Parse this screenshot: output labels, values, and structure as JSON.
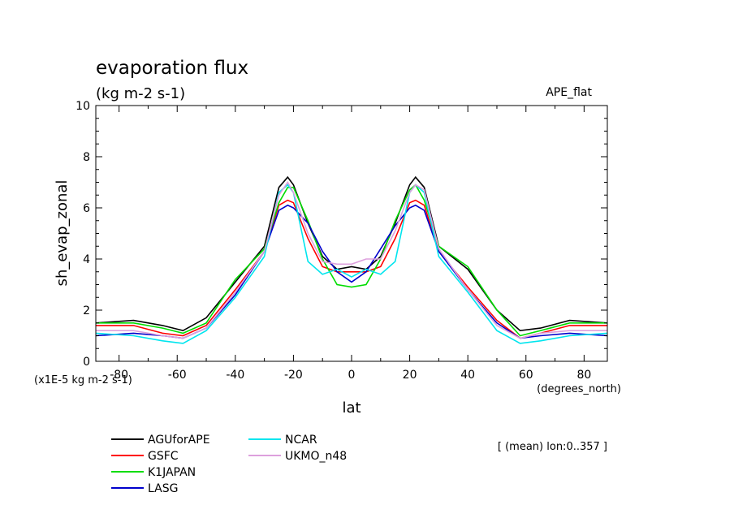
{
  "chart_data": {
    "type": "line",
    "title": "evaporation flux",
    "subtitle": "(kg m-2 s-1)",
    "experiment": "APE_flat",
    "xlabel": "lat",
    "x_units": "(degrees_north)",
    "ylabel": "sh_evap_zonal",
    "y_scale_note": "(x1E-5 kg m-2 s-1)",
    "mean_note": "[ (mean) lon:0..357 ]",
    "xlim": [
      -88,
      88
    ],
    "ylim": [
      0,
      10
    ],
    "x_ticks": [
      -80,
      -60,
      -40,
      -20,
      0,
      20,
      40,
      60,
      80
    ],
    "x_tick_labels": [
      "-80",
      "-60",
      "-40",
      "-20",
      "0",
      "20",
      "40",
      "60",
      "80"
    ],
    "y_ticks": [
      0,
      2,
      4,
      6,
      8,
      10
    ],
    "y_tick_labels": [
      "0",
      "2",
      "4",
      "6",
      "8",
      "10"
    ],
    "grid": false,
    "legend_position": "bottom-left",
    "series": [
      {
        "name": "AGUforAPE",
        "color": "#000000",
        "x": [
          -88,
          -75,
          -65,
          -58,
          -50,
          -40,
          -30,
          -25,
          -22,
          -20,
          -15,
          -10,
          -5,
          0,
          5,
          10,
          15,
          20,
          22,
          25,
          30,
          40,
          50,
          58,
          65,
          75,
          88
        ],
        "y": [
          1.5,
          1.6,
          1.4,
          1.2,
          1.7,
          3.1,
          4.5,
          6.8,
          7.2,
          6.9,
          5.4,
          4.1,
          3.6,
          3.7,
          3.6,
          4.1,
          5.4,
          6.9,
          7.2,
          6.8,
          4.5,
          3.6,
          2.0,
          1.2,
          1.3,
          1.6,
          1.5
        ]
      },
      {
        "name": "GSFC",
        "color": "#ff0000",
        "x": [
          -88,
          -75,
          -65,
          -58,
          -50,
          -40,
          -30,
          -25,
          -22,
          -20,
          -15,
          -10,
          -5,
          0,
          5,
          10,
          15,
          20,
          22,
          25,
          30,
          40,
          50,
          58,
          65,
          75,
          88
        ],
        "y": [
          1.4,
          1.4,
          1.1,
          1.0,
          1.4,
          2.8,
          4.3,
          6.1,
          6.3,
          6.2,
          4.8,
          3.7,
          3.5,
          3.5,
          3.5,
          3.7,
          4.8,
          6.2,
          6.3,
          6.1,
          4.3,
          2.9,
          1.6,
          0.9,
          1.1,
          1.4,
          1.4
        ]
      },
      {
        "name": "K1JAPAN",
        "color": "#00dd00",
        "x": [
          -88,
          -75,
          -65,
          -58,
          -50,
          -40,
          -30,
          -25,
          -22,
          -20,
          -15,
          -10,
          -5,
          0,
          5,
          10,
          15,
          20,
          22,
          25,
          30,
          40,
          50,
          58,
          65,
          75,
          88
        ],
        "y": [
          1.5,
          1.5,
          1.3,
          1.1,
          1.5,
          3.2,
          4.4,
          6.2,
          6.8,
          6.8,
          5.5,
          4.0,
          3.0,
          2.9,
          3.0,
          4.0,
          5.5,
          6.7,
          6.9,
          6.3,
          4.5,
          3.7,
          2.0,
          1.0,
          1.2,
          1.5,
          1.5
        ]
      },
      {
        "name": "LASG",
        "color": "#0000cc",
        "x": [
          -88,
          -75,
          -65,
          -58,
          -50,
          -40,
          -30,
          -25,
          -22,
          -20,
          -15,
          -10,
          -5,
          0,
          5,
          10,
          15,
          20,
          22,
          25,
          30,
          40,
          50,
          58,
          65,
          75,
          88
        ],
        "y": [
          1.0,
          1.1,
          1.0,
          0.9,
          1.3,
          2.6,
          4.3,
          5.9,
          6.1,
          6.0,
          5.4,
          4.3,
          3.5,
          3.1,
          3.5,
          4.4,
          5.3,
          6.0,
          6.1,
          5.9,
          4.3,
          2.8,
          1.5,
          0.9,
          1.0,
          1.1,
          1.0
        ]
      },
      {
        "name": "NCAR",
        "color": "#00e5ee",
        "x": [
          -88,
          -75,
          -65,
          -58,
          -50,
          -40,
          -30,
          -25,
          -22,
          -20,
          -15,
          -10,
          -5,
          0,
          5,
          10,
          15,
          20,
          22,
          25,
          30,
          40,
          50,
          58,
          65,
          75,
          88
        ],
        "y": [
          1.1,
          1.0,
          0.8,
          0.7,
          1.2,
          2.5,
          4.1,
          6.6,
          6.9,
          6.6,
          3.9,
          3.4,
          3.6,
          3.3,
          3.6,
          3.4,
          3.9,
          6.6,
          6.9,
          6.6,
          4.1,
          2.7,
          1.2,
          0.7,
          0.8,
          1.0,
          1.1
        ]
      },
      {
        "name": "UKMO_n48",
        "color": "#dda0dd",
        "x": [
          -88,
          -75,
          -65,
          -58,
          -50,
          -40,
          -30,
          -25,
          -22,
          -20,
          -15,
          -10,
          -5,
          0,
          5,
          10,
          15,
          20,
          22,
          25,
          30,
          40,
          50,
          58,
          65,
          75,
          88
        ],
        "y": [
          1.2,
          1.2,
          1.0,
          0.9,
          1.3,
          2.7,
          4.3,
          6.5,
          7.0,
          6.6,
          5.0,
          3.9,
          3.8,
          3.8,
          4.0,
          4.0,
          5.1,
          6.6,
          6.9,
          6.7,
          4.4,
          2.8,
          1.4,
          0.9,
          1.1,
          1.2,
          1.2
        ]
      }
    ]
  }
}
